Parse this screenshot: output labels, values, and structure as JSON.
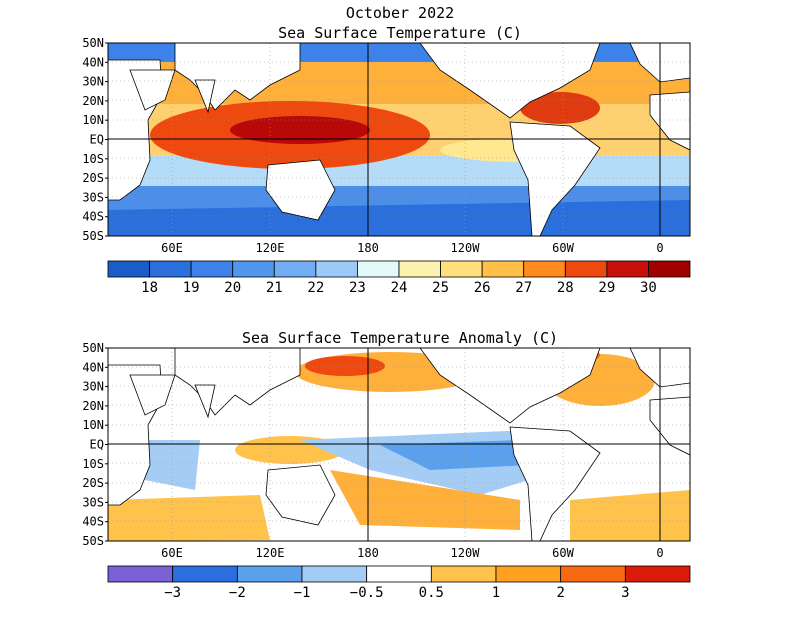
{
  "title": "October 2022",
  "panels": [
    {
      "id": "sst",
      "title": "Sea Surface Temperature (C)",
      "lat_labels": [
        "50N",
        "40N",
        "30N",
        "20N",
        "10N",
        "EQ",
        "10S",
        "20S",
        "30S",
        "40S",
        "50S"
      ],
      "lon_labels": [
        "60E",
        "120E",
        "180",
        "120W",
        "60W",
        "0"
      ],
      "colorbar": {
        "colors": [
          "#1a5cc8",
          "#2a6fdc",
          "#3c82e8",
          "#5296ee",
          "#72acf2",
          "#9ccaf8",
          "#e4fafa",
          "#fbf2b0",
          "#ffe07a",
          "#ffc04a",
          "#ff8a1e",
          "#ee4a10",
          "#c80e08",
          "#a00000"
        ],
        "labels": [
          "18",
          "19",
          "20",
          "21",
          "22",
          "23",
          "24",
          "25",
          "26",
          "27",
          "28",
          "29",
          "30"
        ]
      }
    },
    {
      "id": "anom",
      "title": "Sea Surface Temperature Anomaly (C)",
      "lat_labels": [
        "50N",
        "40N",
        "30N",
        "20N",
        "10N",
        "EQ",
        "10S",
        "20S",
        "30S",
        "40S",
        "50S"
      ],
      "lon_labels": [
        "60E",
        "120E",
        "180",
        "120W",
        "60W",
        "0"
      ],
      "colorbar": {
        "colors": [
          "#7a62d6",
          "#2a6ee0",
          "#5aa0ec",
          "#a4ccf4",
          "#ffffff",
          "#ffc24a",
          "#ffa01e",
          "#f86a12",
          "#dc1a0a"
        ],
        "labels": [
          "−3",
          "−2",
          "−1",
          "−0.5",
          "0.5",
          "1",
          "2",
          "3"
        ]
      }
    }
  ]
}
